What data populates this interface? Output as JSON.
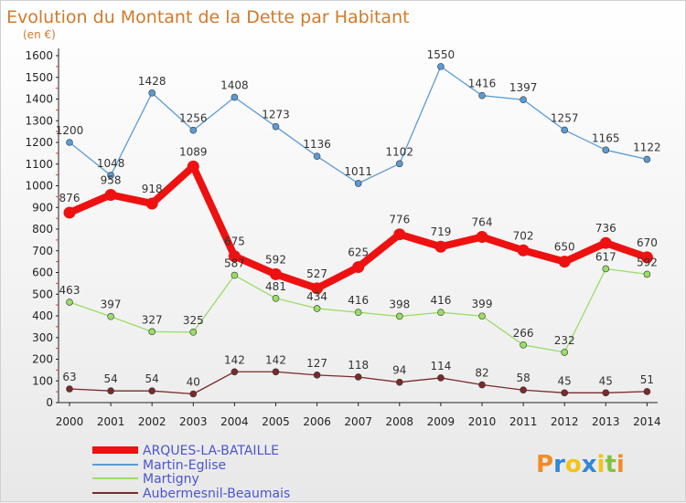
{
  "chart_data": {
    "type": "line",
    "title": "Evolution du Montant de la Dette par Habitant",
    "subtitle": "(en €)",
    "x": [
      "2000",
      "2001",
      "2002",
      "2003",
      "2004",
      "2005",
      "2006",
      "2007",
      "2008",
      "2009",
      "2010",
      "2011",
      "2012",
      "2013",
      "2014"
    ],
    "ylim": [
      0,
      1600
    ],
    "yticks": [
      0,
      100,
      200,
      300,
      400,
      500,
      600,
      700,
      800,
      900,
      1000,
      1100,
      1200,
      1300,
      1400,
      1500,
      1600
    ],
    "grid": false,
    "legend_position": "bottom-left",
    "series": [
      {
        "name": "ARQUES-LA-BATAILLE",
        "color": "#ee1111",
        "emphasis": true,
        "values": [
          876,
          958,
          918,
          1089,
          675,
          592,
          527,
          625,
          776,
          719,
          764,
          702,
          650,
          736,
          670
        ]
      },
      {
        "name": "Martin-Eglise",
        "color": "#5b9bd5",
        "emphasis": false,
        "values": [
          1200,
          1048,
          1428,
          1256,
          1408,
          1273,
          1136,
          1011,
          1102,
          1550,
          1416,
          1397,
          1257,
          1165,
          1122
        ]
      },
      {
        "name": "Martigny",
        "color": "#99dd66",
        "emphasis": false,
        "values": [
          463,
          397,
          327,
          325,
          587,
          481,
          434,
          416,
          398,
          416,
          399,
          266,
          232,
          617,
          592
        ]
      },
      {
        "name": "Aubermesnil-Beaumais",
        "color": "#7a2a2a",
        "emphasis": false,
        "values": [
          63,
          54,
          54,
          40,
          142,
          142,
          127,
          118,
          94,
          114,
          82,
          58,
          45,
          45,
          51
        ]
      }
    ]
  },
  "logo": {
    "text": "Proxiti",
    "colors": [
      "#f28c28",
      "#2f87d8",
      "#f2c418",
      "#2f87d8",
      "#f2c418",
      "#82c341",
      "#f28c28"
    ]
  }
}
